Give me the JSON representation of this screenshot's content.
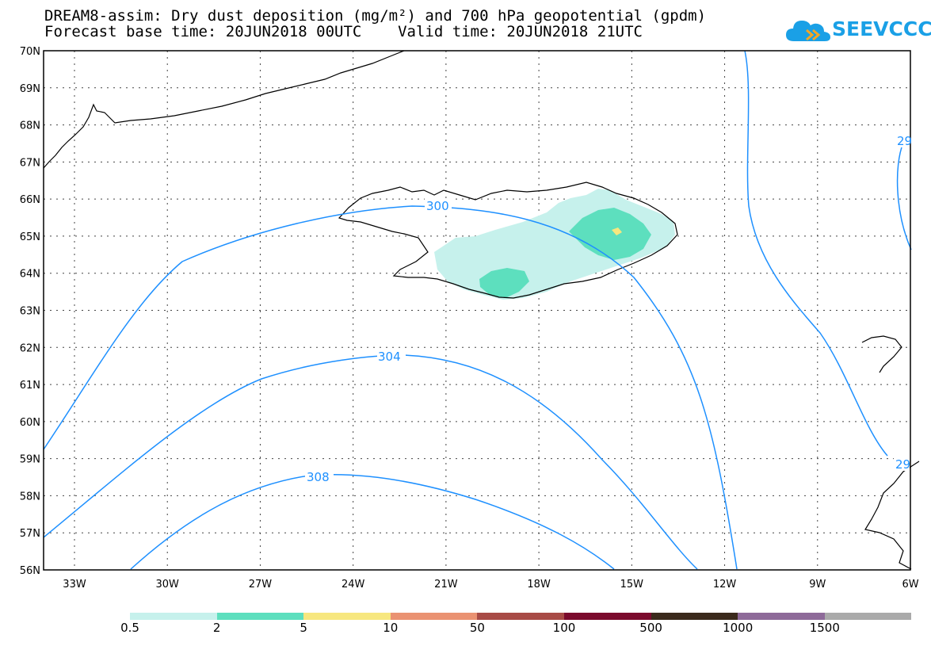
{
  "header": {
    "title_line1": "DREAM8-assim: Dry dust deposition (mg/m²) and 700 hPa geopotential (gpdm)",
    "title_line2": "Forecast base time: 20JUN2018 00UTC    Valid time: 20JUN2018 21UTC"
  },
  "logo": {
    "text": "SEEVCCC",
    "icon": "cloud-icon"
  },
  "map": {
    "lat_labels": [
      "70N",
      "69N",
      "68N",
      "67N",
      "66N",
      "65N",
      "64N",
      "63N",
      "62N",
      "61N",
      "60N",
      "59N",
      "58N",
      "57N",
      "56N"
    ],
    "lon_labels": [
      "33W",
      "30W",
      "27W",
      "24W",
      "21W",
      "18W",
      "15W",
      "12W",
      "9W",
      "6W"
    ],
    "contour_labels": [
      "300",
      "304",
      "308",
      "29",
      "29"
    ],
    "contour_color": "#1e90ff",
    "coastline_color": "#000000",
    "grid_style": "dotted"
  },
  "colorbar": {
    "colors": [
      "#c6f1ec",
      "#5ddfbe",
      "#f7e77f",
      "#ea9272",
      "#a84b46",
      "#7b0a2d",
      "#3b2a1c",
      "#8e6a99",
      "#aaaaaa"
    ],
    "labels": [
      "0.5",
      "2",
      "5",
      "10",
      "50",
      "100",
      "500",
      "1000",
      "1500"
    ]
  }
}
